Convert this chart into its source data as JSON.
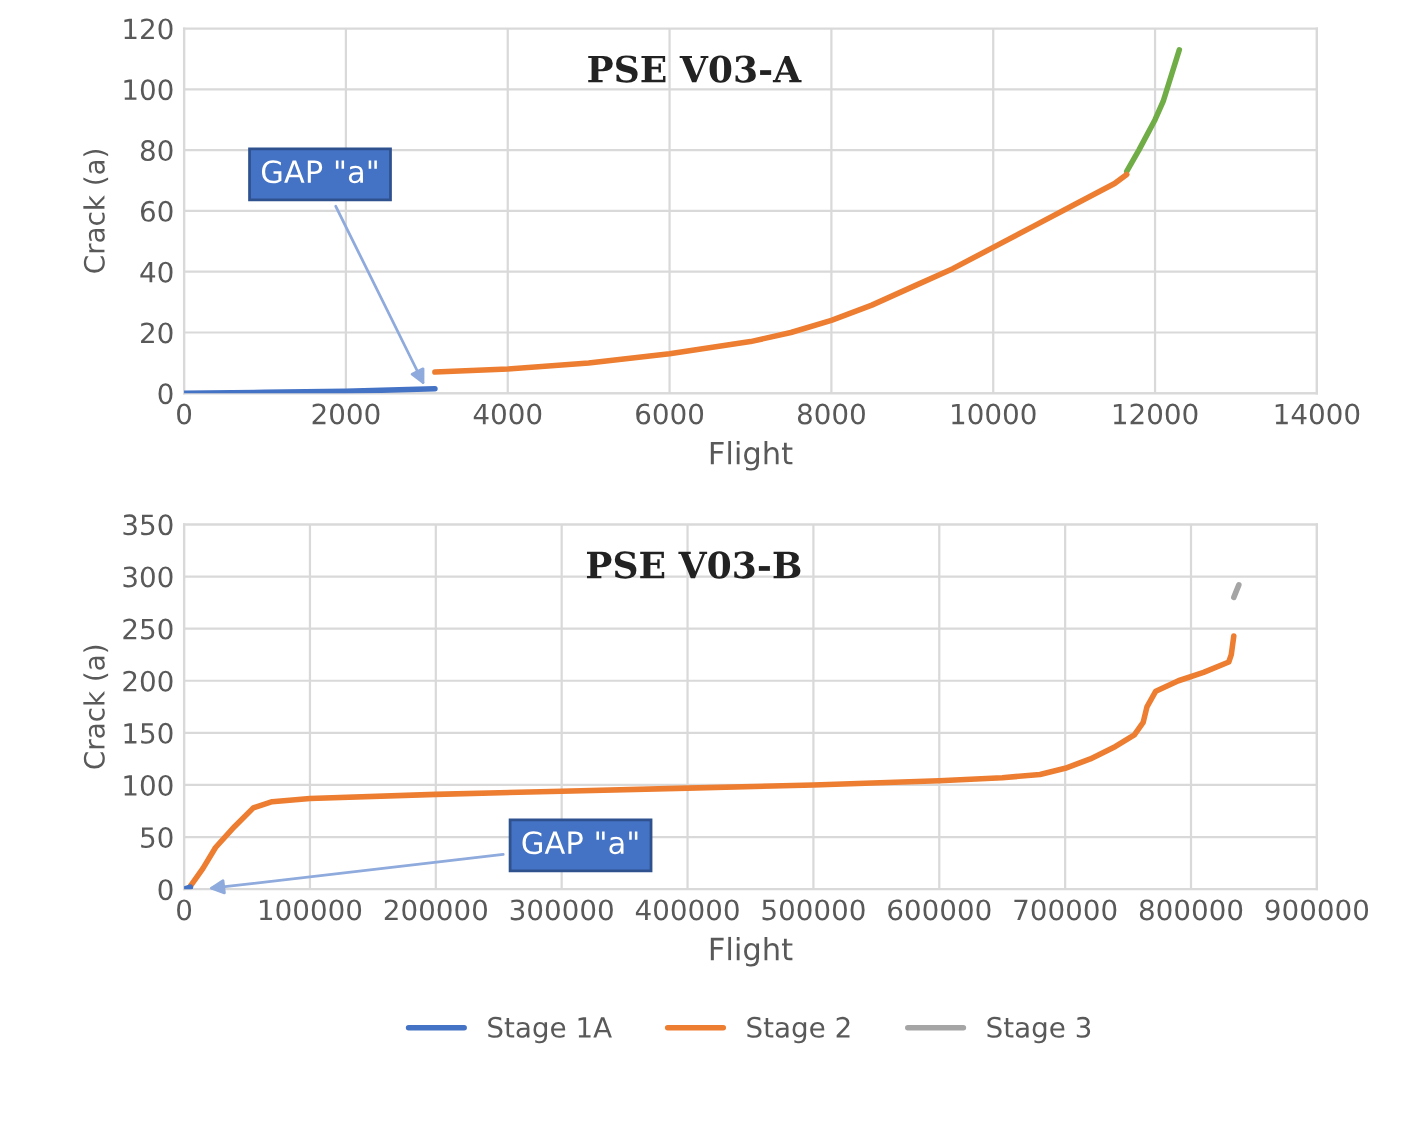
{
  "chart_data": [
    {
      "type": "line",
      "title": "PSE V03-A",
      "xlabel": "Flight",
      "ylabel": "Crack (a)",
      "xlim": [
        0,
        14000
      ],
      "xticks": [
        0,
        2000,
        4000,
        6000,
        8000,
        10000,
        12000,
        14000
      ],
      "ylim": [
        0,
        120
      ],
      "yticks": [
        0,
        20,
        40,
        60,
        80,
        100,
        120
      ],
      "grid": true,
      "legend": false,
      "annotations": [
        {
          "text": "GAP \"a\"",
          "x": 3000,
          "y": 1
        }
      ],
      "series": [
        {
          "color": "#4472c4",
          "x": [
            0,
            1000,
            2000,
            3100
          ],
          "values": [
            0,
            0.3,
            0.7,
            1.5
          ]
        },
        {
          "color": "#ed7d31",
          "x": [
            3100,
            4000,
            5000,
            6000,
            7000,
            7500,
            8000,
            8500,
            9000,
            9500,
            10000,
            10500,
            11000,
            11500,
            11650
          ],
          "values": [
            7,
            8,
            10,
            13,
            17,
            20,
            24,
            29,
            35,
            41,
            48,
            55,
            62,
            69,
            72
          ]
        },
        {
          "color": "#70ad47",
          "x": [
            11650,
            11800,
            12000,
            12100,
            12300
          ],
          "values": [
            73,
            80,
            90,
            96,
            113
          ]
        }
      ]
    },
    {
      "type": "line",
      "title": "PSE V03-B",
      "xlabel": "Flight",
      "ylabel": "Crack (a)",
      "xlim": [
        0,
        900000
      ],
      "xticks": [
        0,
        100000,
        200000,
        300000,
        400000,
        500000,
        600000,
        700000,
        800000,
        900000
      ],
      "ylim": [
        0,
        350
      ],
      "yticks": [
        0,
        50,
        100,
        150,
        200,
        250,
        300,
        350
      ],
      "grid": true,
      "legend": "bottom",
      "annotations": [
        {
          "text": "GAP \"a\"",
          "x": 15000,
          "y": 0
        }
      ],
      "series": [
        {
          "name": "Stage 1A",
          "color": "#4472c4",
          "x": [
            0,
            5000
          ],
          "values": [
            0,
            2
          ]
        },
        {
          "name": "Stage 2",
          "color": "#ed7d31",
          "x": [
            5000,
            15000,
            25000,
            40000,
            55000,
            70000,
            100000,
            200000,
            300000,
            400000,
            500000,
            600000,
            650000,
            680000,
            700000,
            720000,
            740000,
            755000,
            762000,
            765000,
            772000,
            790000,
            810000,
            830000,
            832000,
            834000
          ],
          "values": [
            3,
            20,
            40,
            60,
            78,
            84,
            87,
            91,
            94,
            97,
            100,
            104,
            107,
            110,
            116,
            125,
            137,
            148,
            160,
            175,
            190,
            200,
            208,
            218,
            225,
            243
          ]
        },
        {
          "name": "Stage 3",
          "color": "#a5a5a5",
          "x": [
            834000,
            838000
          ],
          "values": [
            280,
            292
          ]
        }
      ]
    }
  ]
}
